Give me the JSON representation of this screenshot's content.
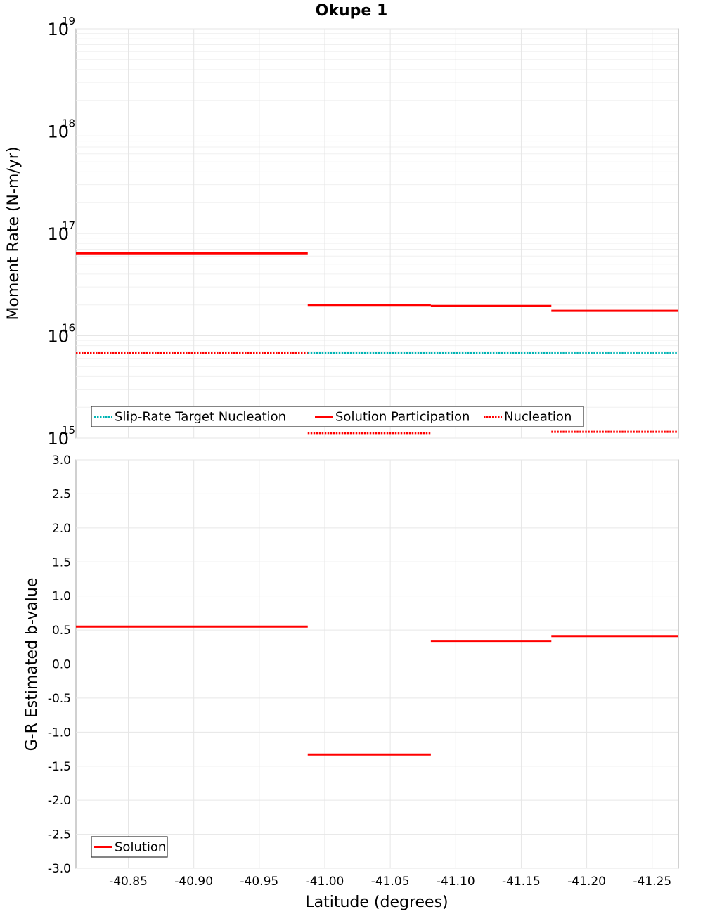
{
  "chart_data": [
    {
      "type": "line",
      "title": "Okupe 1",
      "ylabel": "Moment Rate (N-m/yr)",
      "yscale": "log",
      "ylim": [
        1000000000000000.0,
        1e+19
      ],
      "xlim": [
        -40.81,
        -41.27
      ],
      "y_tick_exponents": [
        "15",
        "16",
        "17",
        "18",
        "19"
      ],
      "grid": true,
      "legend_position": "bottom-left",
      "legend": [
        "Slip-Rate Target Nucleation",
        "Solution Participation",
        "Nucleation"
      ],
      "colors": {
        "target": "#00b4b4",
        "solution": "#ff0000",
        "nucleation": "#ff0000"
      },
      "series": [
        {
          "name": "Slip-Rate Target Nucleation",
          "style": "dotted",
          "color": "#00b4b4",
          "segments": [
            {
              "x": [
                -40.81,
                -40.987
              ],
              "y": 6800000000000000.0
            },
            {
              "x": [
                -40.987,
                -41.081
              ],
              "y": 6800000000000000.0
            },
            {
              "x": [
                -41.081,
                -41.173
              ],
              "y": 6800000000000000.0
            },
            {
              "x": [
                -41.173,
                -41.27
              ],
              "y": 6800000000000000.0
            }
          ]
        },
        {
          "name": "Solution Participation",
          "style": "solid",
          "color": "#ff0000",
          "segments": [
            {
              "x": [
                -40.81,
                -40.987
              ],
              "y": 6.4e+16
            },
            {
              "x": [
                -40.987,
                -41.081
              ],
              "y": 2e+16
            },
            {
              "x": [
                -41.081,
                -41.173
              ],
              "y": 1.95e+16
            },
            {
              "x": [
                -41.173,
                -41.27
              ],
              "y": 1.75e+16
            }
          ]
        },
        {
          "name": "Nucleation",
          "style": "dotted",
          "color": "#ff0000",
          "segments": [
            {
              "x": [
                -40.81,
                -40.987
              ],
              "y": 6800000000000000.0
            },
            {
              "x": [
                -40.987,
                -41.081
              ],
              "y": 1120000000000000.0
            },
            {
              "x": [
                -41.081,
                -41.173
              ],
              "y": 1300000000000000.0
            },
            {
              "x": [
                -41.173,
                -41.27
              ],
              "y": 1150000000000000.0
            }
          ]
        }
      ]
    },
    {
      "type": "line",
      "xlabel": "Latitude (degrees)",
      "ylabel": "G-R Estimated b-value",
      "ylim": [
        -3.0,
        3.0
      ],
      "xlim": [
        -40.81,
        -41.27
      ],
      "y_ticks": [
        "-3.0",
        "-2.5",
        "-2.0",
        "-1.5",
        "-1.0",
        "-0.5",
        "0.0",
        "0.5",
        "1.0",
        "1.5",
        "2.0",
        "2.5",
        "3.0"
      ],
      "x_ticks": [
        "-40.85",
        "-40.90",
        "-40.95",
        "-41.00",
        "-41.05",
        "-41.10",
        "-41.15",
        "-41.20",
        "-41.25"
      ],
      "grid": true,
      "legend_position": "bottom-left",
      "legend": [
        "Solution"
      ],
      "series": [
        {
          "name": "Solution",
          "style": "solid",
          "color": "#ff0000",
          "segments": [
            {
              "x": [
                -40.81,
                -40.987
              ],
              "y": 0.55
            },
            {
              "x": [
                -40.987,
                -41.081
              ],
              "y": -1.33
            },
            {
              "x": [
                -41.081,
                -41.173
              ],
              "y": 0.34
            },
            {
              "x": [
                -41.173,
                -41.27
              ],
              "y": 0.41
            }
          ]
        }
      ]
    }
  ]
}
